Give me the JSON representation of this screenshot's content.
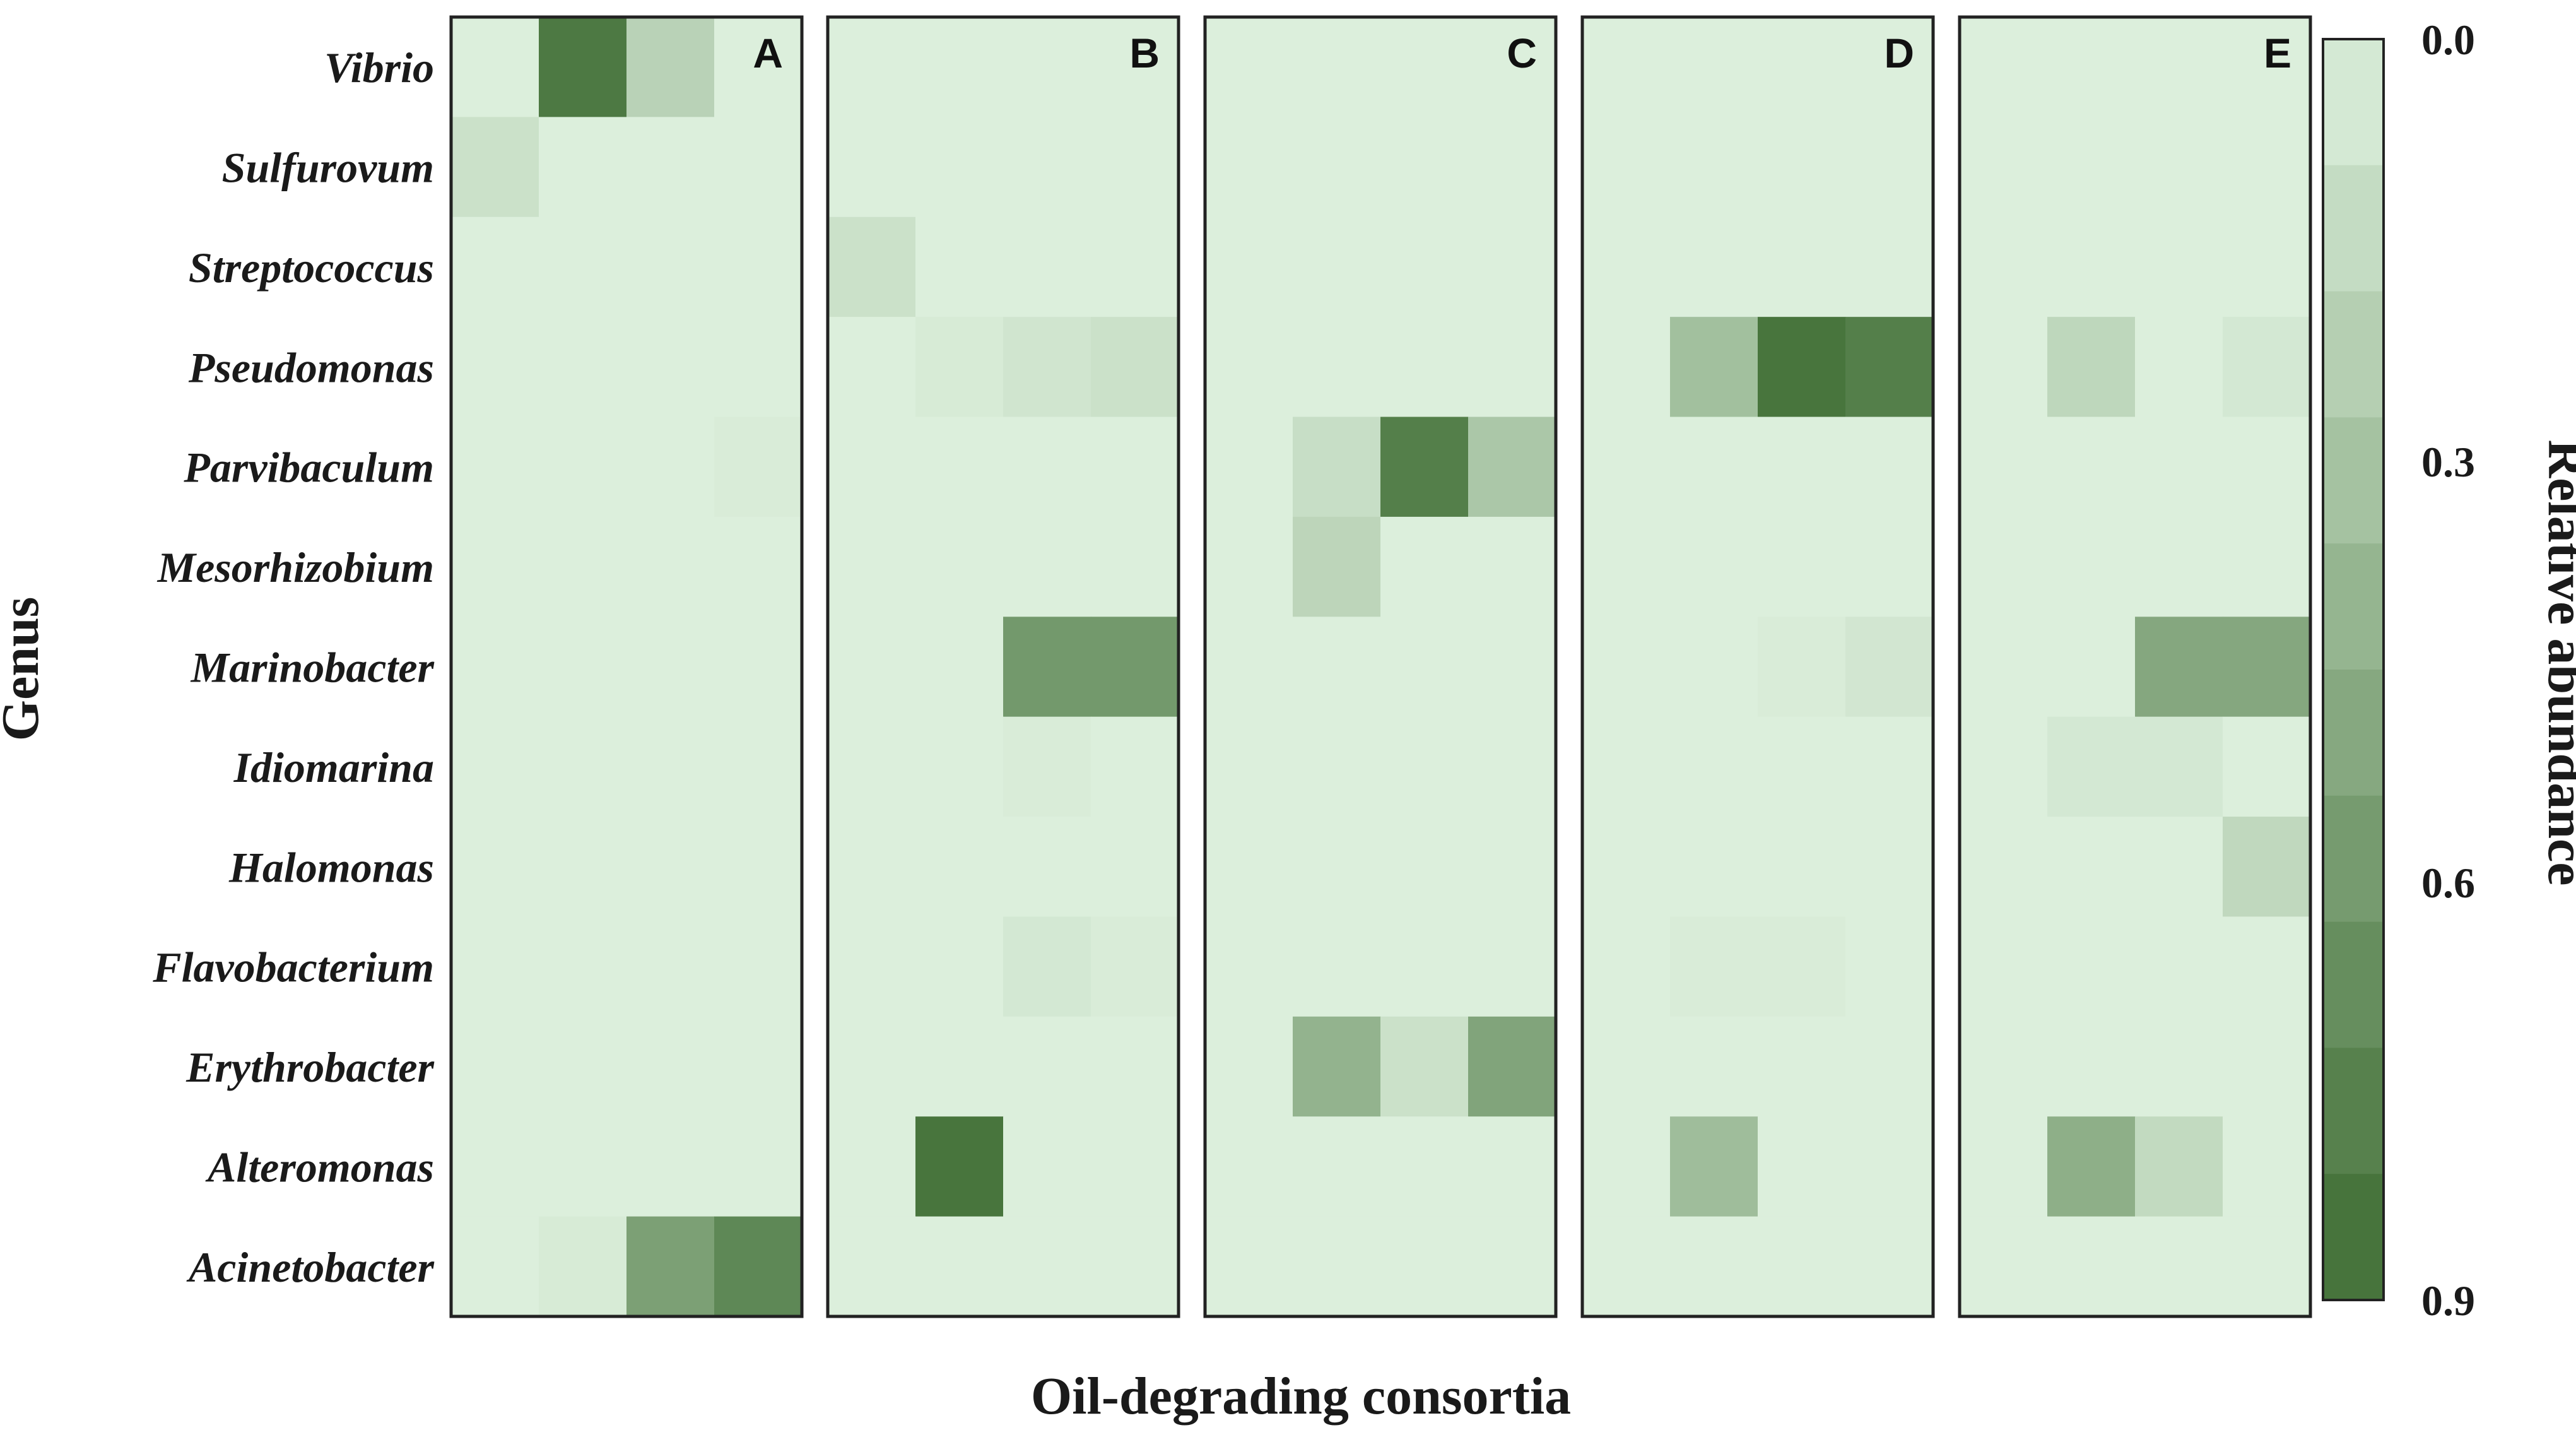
{
  "chart_data": {
    "type": "heatmap",
    "xlabel": "Oil-degrading consortia",
    "ylabel": "Genus",
    "colorbar": {
      "label": "Relative abundance",
      "range": [
        0.0,
        0.9
      ],
      "ticks": [
        "0.0",
        "0.3",
        "0.6",
        "0.9"
      ],
      "low_color": "#dcefdc",
      "high_color": "#3f6e34"
    },
    "genera": [
      "Vibrio",
      "Sulfurovum",
      "Streptococcus",
      "Pseudomonas",
      "Parvibaculum",
      "Mesorhizobium",
      "Marinobacter",
      "Idiomarina",
      "Halomonas",
      "Flavobacterium",
      "Erythrobacter",
      "Alteromonas",
      "Acinetobacter"
    ],
    "panels": [
      {
        "label": "A",
        "values": [
          [
            0.0,
            0.82,
            0.2,
            0.0
          ],
          [
            0.1,
            0.0,
            0.0,
            0.0
          ],
          [
            0.0,
            0.0,
            0.0,
            0.0
          ],
          [
            0.0,
            0.0,
            0.0,
            0.0
          ],
          [
            0.0,
            0.0,
            0.0,
            0.02
          ],
          [
            0.0,
            0.0,
            0.0,
            0.0
          ],
          [
            0.0,
            0.0,
            0.0,
            0.0
          ],
          [
            0.0,
            0.0,
            0.0,
            0.0
          ],
          [
            0.0,
            0.0,
            0.0,
            0.0
          ],
          [
            0.0,
            0.0,
            0.0,
            0.0
          ],
          [
            0.0,
            0.0,
            0.0,
            0.0
          ],
          [
            0.0,
            0.0,
            0.0,
            0.0
          ],
          [
            0.0,
            0.03,
            0.55,
            0.72
          ]
        ]
      },
      {
        "label": "B",
        "values": [
          [
            0.0,
            0.0,
            0.0,
            0.0
          ],
          [
            0.0,
            0.0,
            0.0,
            0.0
          ],
          [
            0.1,
            0.0,
            0.0,
            0.0
          ],
          [
            0.0,
            0.03,
            0.07,
            0.1
          ],
          [
            0.0,
            0.0,
            0.0,
            0.0
          ],
          [
            0.0,
            0.0,
            0.0,
            0.0
          ],
          [
            0.0,
            0.0,
            0.6,
            0.6
          ],
          [
            0.0,
            0.0,
            0.02,
            0.0
          ],
          [
            0.0,
            0.0,
            0.0,
            0.0
          ],
          [
            0.0,
            0.0,
            0.05,
            0.02
          ],
          [
            0.0,
            0.0,
            0.0,
            0.0
          ],
          [
            0.0,
            0.85,
            0.0,
            0.0
          ],
          [
            0.0,
            0.0,
            0.0,
            0.0
          ]
        ]
      },
      {
        "label": "C",
        "values": [
          [
            0.0,
            0.0,
            0.0,
            0.0
          ],
          [
            0.0,
            0.0,
            0.0,
            0.0
          ],
          [
            0.0,
            0.0,
            0.0,
            0.0
          ],
          [
            0.0,
            0.0,
            0.0,
            0.0
          ],
          [
            0.0,
            0.12,
            0.78,
            0.28
          ],
          [
            0.0,
            0.18,
            0.0,
            0.0
          ],
          [
            0.0,
            0.0,
            0.0,
            0.0
          ],
          [
            0.0,
            0.0,
            0.0,
            0.0
          ],
          [
            0.0,
            0.0,
            0.0,
            0.0
          ],
          [
            0.0,
            0.0,
            0.0,
            0.0
          ],
          [
            0.0,
            0.42,
            0.1,
            0.52
          ],
          [
            0.0,
            0.0,
            0.0,
            0.0
          ],
          [
            0.0,
            0.0,
            0.0,
            0.0
          ]
        ]
      },
      {
        "label": "D",
        "values": [
          [
            0.0,
            0.0,
            0.0,
            0.0
          ],
          [
            0.0,
            0.0,
            0.0,
            0.0
          ],
          [
            0.0,
            0.0,
            0.0,
            0.0
          ],
          [
            0.0,
            0.33,
            0.85,
            0.78
          ],
          [
            0.0,
            0.0,
            0.0,
            0.0
          ],
          [
            0.0,
            0.0,
            0.0,
            0.0
          ],
          [
            0.0,
            0.0,
            0.02,
            0.06
          ],
          [
            0.0,
            0.0,
            0.0,
            0.0
          ],
          [
            0.0,
            0.0,
            0.0,
            0.0
          ],
          [
            0.0,
            0.02,
            0.02,
            0.0
          ],
          [
            0.0,
            0.0,
            0.0,
            0.0
          ],
          [
            0.0,
            0.35,
            0.0,
            0.0
          ],
          [
            0.0,
            0.0,
            0.0,
            0.0
          ]
        ]
      },
      {
        "label": "E",
        "values": [
          [
            0.0,
            0.0,
            0.0,
            0.0
          ],
          [
            0.0,
            0.0,
            0.0,
            0.0
          ],
          [
            0.0,
            0.0,
            0.0,
            0.0
          ],
          [
            0.0,
            0.17,
            0.0,
            0.05
          ],
          [
            0.0,
            0.0,
            0.0,
            0.0
          ],
          [
            0.0,
            0.0,
            0.0,
            0.0
          ],
          [
            0.0,
            0.0,
            0.5,
            0.5
          ],
          [
            0.0,
            0.05,
            0.05,
            0.0
          ],
          [
            0.0,
            0.0,
            0.0,
            0.16
          ],
          [
            0.0,
            0.0,
            0.0,
            0.0
          ],
          [
            0.0,
            0.0,
            0.0,
            0.0
          ],
          [
            0.0,
            0.45,
            0.15,
            0.0
          ],
          [
            0.0,
            0.0,
            0.0,
            0.0
          ]
        ]
      }
    ],
    "grid": false
  }
}
